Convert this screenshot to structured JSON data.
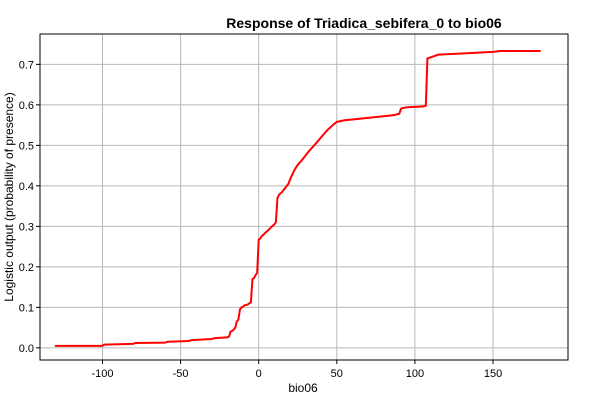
{
  "chart_data": {
    "type": "line",
    "title": "Response of Triadica_sebifera_0 to bio06",
    "xlabel": "bio06",
    "ylabel": "Logistic output (probability of presence)",
    "xlim": [
      -140,
      198
    ],
    "ylim": [
      -0.03,
      0.775
    ],
    "x_ticks": [
      -100,
      -50,
      0,
      50,
      100,
      150
    ],
    "y_ticks": [
      0.0,
      0.1,
      0.2,
      0.3,
      0.4,
      0.5,
      0.6,
      0.7
    ],
    "x_tick_labels": [
      "-100",
      "-50",
      "0",
      "50",
      "100",
      "150"
    ],
    "y_tick_labels": [
      "0.0",
      "0.1",
      "0.2",
      "0.3",
      "0.4",
      "0.5",
      "0.6",
      "0.7"
    ],
    "grid": true,
    "line_color": "#ff0000",
    "series": [
      {
        "x": [
          -130,
          -100,
          -99,
          -80,
          -79,
          -60,
          -58,
          -45,
          -43,
          -30,
          -28,
          -20,
          -19,
          -18,
          -17,
          -16,
          -15,
          -14,
          -13,
          -12,
          -11,
          -10,
          -9,
          -8,
          -7,
          -6,
          -5,
          -4,
          -3,
          -2,
          -1,
          0,
          1,
          2,
          4,
          5,
          6,
          8,
          10,
          11,
          12,
          13,
          15,
          17,
          19,
          20,
          22,
          23,
          25,
          28,
          32,
          36,
          40,
          44,
          48,
          50,
          55,
          60,
          70,
          80,
          85,
          88,
          90,
          91,
          92,
          95,
          100,
          105,
          107,
          108,
          109,
          112,
          115,
          130,
          150,
          155,
          180
        ],
        "y": [
          0.005,
          0.005,
          0.008,
          0.01,
          0.012,
          0.013,
          0.015,
          0.017,
          0.019,
          0.022,
          0.024,
          0.026,
          0.028,
          0.04,
          0.042,
          0.045,
          0.05,
          0.065,
          0.07,
          0.095,
          0.1,
          0.102,
          0.105,
          0.106,
          0.107,
          0.11,
          0.112,
          0.17,
          0.172,
          0.18,
          0.185,
          0.267,
          0.27,
          0.276,
          0.283,
          0.287,
          0.29,
          0.298,
          0.305,
          0.31,
          0.37,
          0.378,
          0.385,
          0.395,
          0.405,
          0.415,
          0.432,
          0.44,
          0.452,
          0.465,
          0.485,
          0.502,
          0.52,
          0.538,
          0.552,
          0.558,
          0.562,
          0.564,
          0.568,
          0.572,
          0.574,
          0.576,
          0.578,
          0.59,
          0.592,
          0.594,
          0.595,
          0.596,
          0.598,
          0.715,
          0.716,
          0.72,
          0.724,
          0.727,
          0.731,
          0.733,
          0.733
        ]
      }
    ]
  }
}
